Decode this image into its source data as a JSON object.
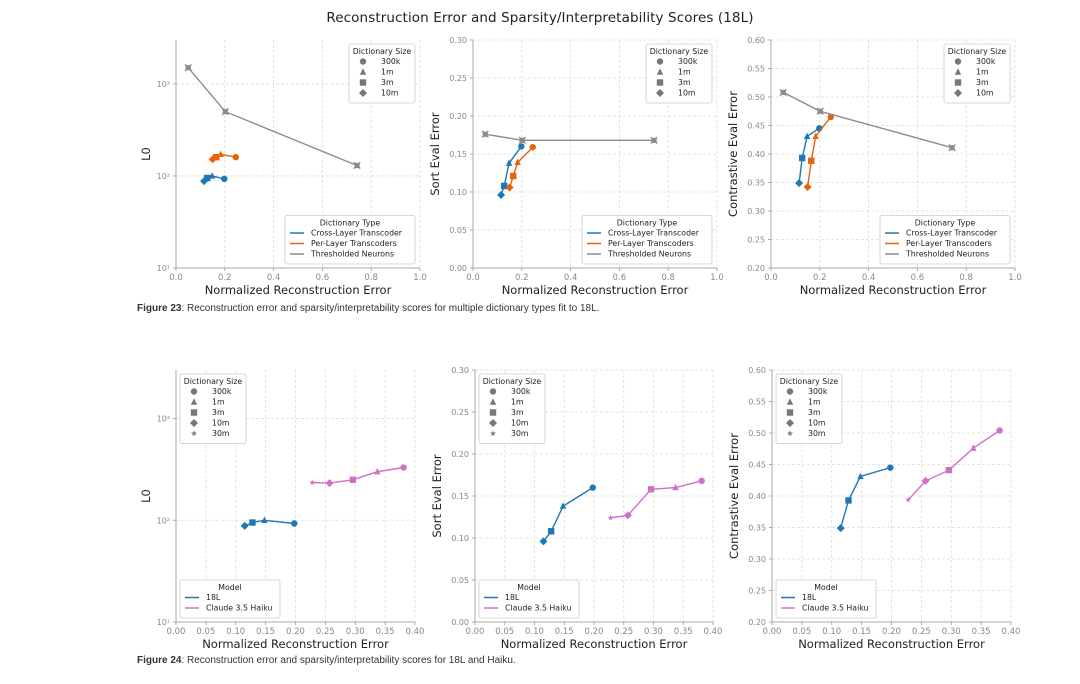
{
  "suptitle": "Reconstruction Error and Sparsity/Interpretability Scores (18L)",
  "captions": [
    {
      "label": "Figure 23",
      "text": ": Reconstruction error and sparsity/interpretability scores for multiple dictionary types fit to 18L."
    },
    {
      "label": "Figure 24",
      "text": ": Reconstruction error and sparsity/interpretability scores for 18L and Haiku."
    }
  ],
  "colors": {
    "cross_layer": "#1f77b4",
    "per_layer": "#e8620c",
    "thresholded": "#8c8c8c",
    "l18": "#1f77b4",
    "haiku": "#d070c8"
  },
  "chart_data": [
    {
      "type": "line",
      "figure": "Figure 23",
      "title": "",
      "xlabel": "Normalized Reconstruction Error",
      "ylabel": "L0",
      "yscale": "log",
      "xlim": [
        0.0,
        1.0
      ],
      "ylim": [
        10,
        3000
      ],
      "xticks": [
        "0.0",
        "0.2",
        "0.4",
        "0.6",
        "0.8",
        "1.0"
      ],
      "yticks": [
        "10¹",
        "10²",
        "10³"
      ],
      "grid": true,
      "legends": [
        {
          "title": "Dictionary Size",
          "placement": "top-right",
          "entries": [
            "300k",
            "1m",
            "3m",
            "10m"
          ],
          "markers": [
            "circle",
            "triangle",
            "square",
            "diamond"
          ]
        },
        {
          "title": "Dictionary Type",
          "placement": "bottom-right",
          "entries": [
            "Cross-Layer Transcoder",
            "Per-Layer Transcoders",
            "Thresholded Neurons"
          ]
        }
      ],
      "series": [
        {
          "name": "Cross-Layer Transcoder",
          "color_key": "cross_layer",
          "x": [
            0.198,
            0.148,
            0.128,
            0.115
          ],
          "y": [
            93,
            100,
            95,
            88
          ],
          "markers": [
            "circle",
            "triangle",
            "square",
            "diamond"
          ]
        },
        {
          "name": "Per-Layer Transcoders",
          "color_key": "per_layer",
          "x": [
            0.245,
            0.183,
            0.165,
            0.15
          ],
          "y": [
            160,
            172,
            160,
            152
          ],
          "markers": [
            "circle",
            "triangle",
            "square",
            "diamond"
          ]
        },
        {
          "name": "Thresholded Neurons",
          "color_key": "thresholded",
          "x": [
            0.05,
            0.202,
            0.742
          ],
          "y": [
            1500,
            500,
            130
          ],
          "markers": [
            "x",
            "x",
            "x"
          ]
        }
      ]
    },
    {
      "type": "line",
      "figure": "Figure 23",
      "xlabel": "Normalized Reconstruction Error",
      "ylabel": "Sort Eval Error",
      "xlim": [
        0.0,
        1.0
      ],
      "ylim": [
        0.0,
        0.3
      ],
      "xticks": [
        "0.0",
        "0.2",
        "0.4",
        "0.6",
        "0.8",
        "1.0"
      ],
      "yticks": [
        "0.00",
        "0.05",
        "0.10",
        "0.15",
        "0.20",
        "0.25",
        "0.30"
      ],
      "grid": true,
      "legends": [
        {
          "title": "Dictionary Size",
          "placement": "top-right",
          "entries": [
            "300k",
            "1m",
            "3m",
            "10m"
          ],
          "markers": [
            "circle",
            "triangle",
            "square",
            "diamond"
          ]
        },
        {
          "title": "Dictionary Type",
          "placement": "bottom-right",
          "entries": [
            "Cross-Layer Transcoder",
            "Per-Layer Transcoders",
            "Thresholded Neurons"
          ]
        }
      ],
      "series": [
        {
          "name": "Cross-Layer Transcoder",
          "color_key": "cross_layer",
          "x": [
            0.198,
            0.148,
            0.128,
            0.115
          ],
          "y": [
            0.16,
            0.138,
            0.108,
            0.096
          ],
          "markers": [
            "circle",
            "triangle",
            "square",
            "diamond"
          ]
        },
        {
          "name": "Per-Layer Transcoders",
          "color_key": "per_layer",
          "x": [
            0.245,
            0.183,
            0.165,
            0.15
          ],
          "y": [
            0.159,
            0.139,
            0.121,
            0.106
          ],
          "markers": [
            "circle",
            "triangle",
            "square",
            "diamond"
          ]
        },
        {
          "name": "Thresholded Neurons",
          "color_key": "thresholded",
          "x": [
            0.05,
            0.202,
            0.742
          ],
          "y": [
            0.176,
            0.168,
            0.168
          ],
          "markers": [
            "x",
            "x",
            "x"
          ]
        }
      ]
    },
    {
      "type": "line",
      "figure": "Figure 23",
      "xlabel": "Normalized Reconstruction Error",
      "ylabel": "Contrastive Eval Error",
      "xlim": [
        0.0,
        1.0
      ],
      "ylim": [
        0.2,
        0.6
      ],
      "xticks": [
        "0.0",
        "0.2",
        "0.4",
        "0.6",
        "0.8",
        "1.0"
      ],
      "yticks": [
        "0.20",
        "0.25",
        "0.30",
        "0.35",
        "0.40",
        "0.45",
        "0.50",
        "0.55",
        "0.60"
      ],
      "grid": true,
      "legends": [
        {
          "title": "Dictionary Size",
          "placement": "top-right",
          "entries": [
            "300k",
            "1m",
            "3m",
            "10m"
          ],
          "markers": [
            "circle",
            "triangle",
            "square",
            "diamond"
          ]
        },
        {
          "title": "Dictionary Type",
          "placement": "bottom-right",
          "entries": [
            "Cross-Layer Transcoder",
            "Per-Layer Transcoders",
            "Thresholded Neurons"
          ]
        }
      ],
      "series": [
        {
          "name": "Cross-Layer Transcoder",
          "color_key": "cross_layer",
          "x": [
            0.198,
            0.148,
            0.128,
            0.115
          ],
          "y": [
            0.445,
            0.431,
            0.393,
            0.349
          ],
          "markers": [
            "circle",
            "triangle",
            "square",
            "diamond"
          ]
        },
        {
          "name": "Per-Layer Transcoders",
          "color_key": "per_layer",
          "x": [
            0.245,
            0.183,
            0.165,
            0.15
          ],
          "y": [
            0.465,
            0.431,
            0.388,
            0.342
          ],
          "markers": [
            "circle",
            "triangle",
            "square",
            "diamond"
          ]
        },
        {
          "name": "Thresholded Neurons",
          "color_key": "thresholded",
          "x": [
            0.05,
            0.202,
            0.742
          ],
          "y": [
            0.508,
            0.475,
            0.411
          ],
          "markers": [
            "x",
            "x",
            "x"
          ]
        }
      ]
    },
    {
      "type": "line",
      "figure": "Figure 24",
      "xlabel": "Normalized Reconstruction Error",
      "ylabel": "L0",
      "yscale": "log",
      "xlim": [
        0.0,
        0.4
      ],
      "ylim": [
        10,
        3000
      ],
      "xticks": [
        "0.00",
        "0.05",
        "0.10",
        "0.15",
        "0.20",
        "0.25",
        "0.30",
        "0.35",
        "0.40"
      ],
      "yticks": [
        "10¹",
        "10²",
        "10³"
      ],
      "grid": true,
      "legends": [
        {
          "title": "Dictionary Size",
          "placement": "top-left",
          "entries": [
            "300k",
            "1m",
            "3m",
            "10m",
            "30m"
          ],
          "markers": [
            "circle",
            "triangle",
            "square",
            "diamond",
            "star"
          ]
        },
        {
          "title": "Model",
          "placement": "bottom-left",
          "entries": [
            "18L",
            "Claude 3.5 Haiku"
          ]
        }
      ],
      "series": [
        {
          "name": "18L",
          "color_key": "l18",
          "x": [
            0.198,
            0.148,
            0.128,
            0.115
          ],
          "y": [
            93,
            100,
            95,
            88
          ],
          "markers": [
            "circle",
            "triangle",
            "square",
            "diamond"
          ]
        },
        {
          "name": "Claude 3.5 Haiku",
          "color_key": "haiku",
          "x": [
            0.381,
            0.337,
            0.296,
            0.257,
            0.228
          ],
          "y": [
            330,
            300,
            250,
            232,
            235
          ],
          "markers": [
            "circle",
            "triangle",
            "square",
            "diamond",
            "star"
          ]
        }
      ]
    },
    {
      "type": "line",
      "figure": "Figure 24",
      "xlabel": "Normalized Reconstruction Error",
      "ylabel": "Sort Eval Error",
      "xlim": [
        0.0,
        0.4
      ],
      "ylim": [
        0.0,
        0.3
      ],
      "xticks": [
        "0.00",
        "0.05",
        "0.10",
        "0.15",
        "0.20",
        "0.25",
        "0.30",
        "0.35",
        "0.40"
      ],
      "yticks": [
        "0.00",
        "0.05",
        "0.10",
        "0.15",
        "0.20",
        "0.25",
        "0.30"
      ],
      "grid": true,
      "legends": [
        {
          "title": "Dictionary Size",
          "placement": "top-left",
          "entries": [
            "300k",
            "1m",
            "3m",
            "10m",
            "30m"
          ],
          "markers": [
            "circle",
            "triangle",
            "square",
            "diamond",
            "star"
          ]
        },
        {
          "title": "Model",
          "placement": "bottom-left",
          "entries": [
            "18L",
            "Claude 3.5 Haiku"
          ]
        }
      ],
      "series": [
        {
          "name": "18L",
          "color_key": "l18",
          "x": [
            0.198,
            0.148,
            0.128,
            0.115
          ],
          "y": [
            0.16,
            0.138,
            0.108,
            0.096
          ],
          "markers": [
            "circle",
            "triangle",
            "square",
            "diamond"
          ]
        },
        {
          "name": "Claude 3.5 Haiku",
          "color_key": "haiku",
          "x": [
            0.381,
            0.337,
            0.296,
            0.257,
            0.228
          ],
          "y": [
            0.168,
            0.16,
            0.158,
            0.127,
            0.124
          ],
          "markers": [
            "circle",
            "triangle",
            "square",
            "diamond",
            "star"
          ]
        }
      ]
    },
    {
      "type": "line",
      "figure": "Figure 24",
      "xlabel": "Normalized Reconstruction Error",
      "ylabel": "Contrastive Eval Error",
      "xlim": [
        0.0,
        0.4
      ],
      "ylim": [
        0.2,
        0.6
      ],
      "xticks": [
        "0.00",
        "0.05",
        "0.10",
        "0.15",
        "0.20",
        "0.25",
        "0.30",
        "0.35",
        "0.40"
      ],
      "yticks": [
        "0.20",
        "0.25",
        "0.30",
        "0.35",
        "0.40",
        "0.45",
        "0.50",
        "0.55",
        "0.60"
      ],
      "grid": true,
      "legends": [
        {
          "title": "Dictionary Size",
          "placement": "top-left",
          "entries": [
            "300k",
            "1m",
            "3m",
            "10m",
            "30m"
          ],
          "markers": [
            "circle",
            "triangle",
            "square",
            "diamond",
            "star"
          ]
        },
        {
          "title": "Model",
          "placement": "bottom-left",
          "entries": [
            "18L",
            "Claude 3.5 Haiku"
          ]
        }
      ],
      "series": [
        {
          "name": "18L",
          "color_key": "l18",
          "x": [
            0.198,
            0.148,
            0.128,
            0.115
          ],
          "y": [
            0.445,
            0.431,
            0.393,
            0.349
          ],
          "markers": [
            "circle",
            "triangle",
            "square",
            "diamond"
          ]
        },
        {
          "name": "Claude 3.5 Haiku",
          "color_key": "haiku",
          "x": [
            0.381,
            0.337,
            0.296,
            0.257,
            0.228
          ],
          "y": [
            0.504,
            0.476,
            0.441,
            0.424,
            0.394
          ],
          "markers": [
            "circle",
            "triangle",
            "square",
            "diamond",
            "star"
          ]
        }
      ]
    }
  ]
}
